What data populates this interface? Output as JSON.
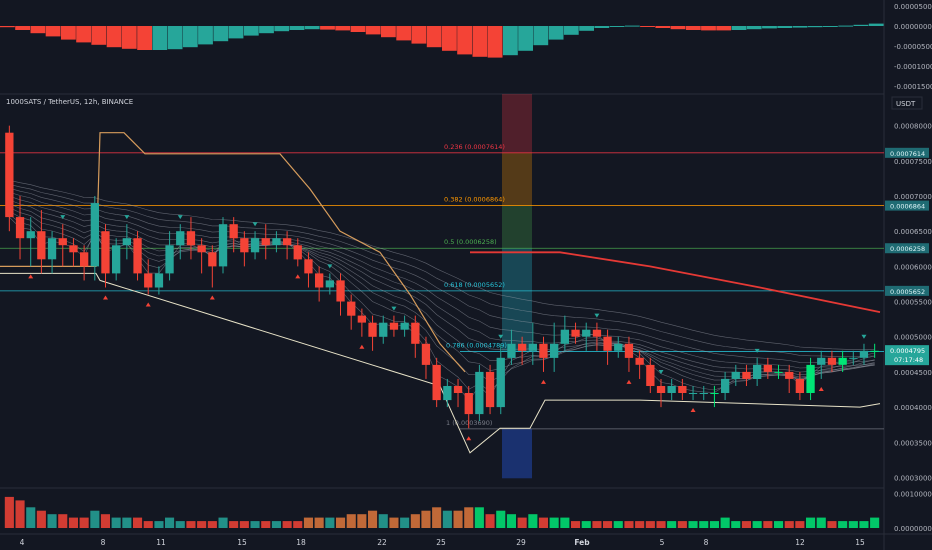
{
  "header": {
    "symbol_line": "1000SATS / TetherUS, 12h, BINANCE",
    "currency_label": "USDT"
  },
  "countdown": "07:17:48",
  "colors": {
    "background": "#131722",
    "bull": "#26a69a",
    "bear": "#f44336",
    "bright_green": "#00e676",
    "fib": "#26c6da",
    "red_line": "#e53935",
    "orange_line": "#d69c5c"
  },
  "chart_data": [
    {
      "type": "bar",
      "name": "oscillator",
      "yticks": [
        "0.0000500",
        "0.0000000",
        "-0.0000500",
        "-0.0001000",
        "-0.0001500"
      ],
      "ylim": [
        -0.00016,
        5e-05
      ],
      "values": [
        -3e-06,
        -1e-05,
        -1.8e-05,
        -2.6e-05,
        -3.4e-05,
        -4.1e-05,
        -4.7e-05,
        -5.3e-05,
        -5.7e-05,
        -6e-05,
        -6e-05,
        -5.8e-05,
        -5.3e-05,
        -4.6e-05,
        -3.8e-05,
        -3.1e-05,
        -2.4e-05,
        -1.8e-05,
        -1.3e-05,
        -1e-05,
        -8e-06,
        -9e-06,
        -1.1e-05,
        -1.5e-05,
        -2.1e-05,
        -2.8e-05,
        -3.6e-05,
        -4.4e-05,
        -5.3e-05,
        -6.2e-05,
        -7.1e-05,
        -7.7e-05,
        -7.9e-05,
        -7.3e-05,
        -6.2e-05,
        -4.8e-05,
        -3.4e-05,
        -2.2e-05,
        -1.2e-05,
        -5e-06,
        -1e-06,
        1e-06,
        -2e-06,
        -5e-06,
        -8e-06,
        -1e-05,
        -1.1e-05,
        -1.1e-05,
        -1e-05,
        -8e-06,
        -6e-06,
        -5e-06,
        -4e-06,
        -3e-06,
        -2e-06,
        1e-06,
        3e-06,
        6e-06
      ],
      "colors": [
        "r",
        "r",
        "r",
        "r",
        "r",
        "r",
        "r",
        "r",
        "r",
        "r",
        "g",
        "g",
        "g",
        "g",
        "g",
        "g",
        "g",
        "g",
        "g",
        "g",
        "g",
        "r",
        "r",
        "r",
        "r",
        "r",
        "r",
        "r",
        "r",
        "r",
        "r",
        "r",
        "r",
        "g",
        "g",
        "g",
        "g",
        "g",
        "g",
        "g",
        "g",
        "g",
        "r",
        "r",
        "r",
        "r",
        "r",
        "r",
        "g",
        "g",
        "g",
        "g",
        "g",
        "g",
        "g",
        "g",
        "g",
        "g"
      ]
    },
    {
      "type": "candlestick",
      "name": "price",
      "title": "1000SATS / TetherUS, 12h, BINANCE",
      "yticks": [
        "0.0008000",
        "0.0007500",
        "0.0007000",
        "0.0006500",
        "0.0006000",
        "0.0005500",
        "0.0005000",
        "0.0004500",
        "0.0004000",
        "0.0003500",
        "0.0003000"
      ],
      "ylim": [
        0.000285,
        0.000845
      ],
      "xticks": [
        "4",
        "8",
        "11",
        "15",
        "18",
        "22",
        "25",
        "29",
        "Feb",
        "5",
        "8",
        "12",
        "15"
      ],
      "candles": [
        [
          7.9,
          6.7,
          8.0,
          6.5
        ],
        [
          6.7,
          6.4,
          7.0,
          6.1
        ],
        [
          6.4,
          6.5,
          6.7,
          6.0
        ],
        [
          6.5,
          6.1,
          6.8,
          5.9
        ],
        [
          6.1,
          6.4,
          6.5,
          5.9
        ],
        [
          6.4,
          6.3,
          6.6,
          6.0
        ],
        [
          6.3,
          6.2,
          6.4,
          6.0
        ],
        [
          6.2,
          6.0,
          6.3,
          5.8
        ],
        [
          6.0,
          6.9,
          7.0,
          5.8
        ],
        [
          6.5,
          5.9,
          6.6,
          5.7
        ],
        [
          5.9,
          6.3,
          6.4,
          5.8
        ],
        [
          6.3,
          6.4,
          6.6,
          6.1
        ],
        [
          6.4,
          5.9,
          6.5,
          5.8
        ],
        [
          5.9,
          5.7,
          6.1,
          5.6
        ],
        [
          5.7,
          5.9,
          6.0,
          5.6
        ],
        [
          5.9,
          6.3,
          6.5,
          5.8
        ],
        [
          6.3,
          6.5,
          6.6,
          6.1
        ],
        [
          6.5,
          6.3,
          6.7,
          6.1
        ],
        [
          6.3,
          6.2,
          6.4,
          5.9
        ],
        [
          6.2,
          6.0,
          6.3,
          5.7
        ],
        [
          6.0,
          6.6,
          6.7,
          5.9
        ],
        [
          6.6,
          6.4,
          6.7,
          6.2
        ],
        [
          6.4,
          6.2,
          6.5,
          6.0
        ],
        [
          6.2,
          6.4,
          6.5,
          6.1
        ],
        [
          6.4,
          6.3,
          6.6,
          6.1
        ],
        [
          6.3,
          6.4,
          6.5,
          6.2
        ],
        [
          6.4,
          6.3,
          6.5,
          6.1
        ],
        [
          6.3,
          6.1,
          6.4,
          6.0
        ],
        [
          6.1,
          5.9,
          6.2,
          5.7
        ],
        [
          5.9,
          5.7,
          6.0,
          5.5
        ],
        [
          5.7,
          5.8,
          5.9,
          5.6
        ],
        [
          5.8,
          5.5,
          5.9,
          5.3
        ],
        [
          5.5,
          5.3,
          5.6,
          5.1
        ],
        [
          5.3,
          5.2,
          5.4,
          5.0
        ],
        [
          5.2,
          5.0,
          5.3,
          4.8
        ],
        [
          5.0,
          5.2,
          5.3,
          4.9
        ],
        [
          5.2,
          5.1,
          5.3,
          5.0
        ],
        [
          5.1,
          5.2,
          5.3,
          5.0
        ],
        [
          5.2,
          4.9,
          5.3,
          4.7
        ],
        [
          4.9,
          4.6,
          5.0,
          4.4
        ],
        [
          4.6,
          4.1,
          4.7,
          4.0
        ],
        [
          4.1,
          4.3,
          4.4,
          4.0
        ],
        [
          4.3,
          4.2,
          4.4,
          4.0
        ],
        [
          4.2,
          3.9,
          4.3,
          3.7
        ],
        [
          3.9,
          4.5,
          4.6,
          3.8
        ],
        [
          4.5,
          4.0,
          4.6,
          3.9
        ],
        [
          4.0,
          4.7,
          4.9,
          3.9
        ],
        [
          4.7,
          4.9,
          5.1,
          4.6
        ],
        [
          4.9,
          4.8,
          5.0,
          4.6
        ],
        [
          4.8,
          4.9,
          5.2,
          4.6
        ],
        [
          4.9,
          4.7,
          5.0,
          4.5
        ],
        [
          4.7,
          4.9,
          5.2,
          4.5
        ],
        [
          4.9,
          5.1,
          5.3,
          4.8
        ],
        [
          5.1,
          5.0,
          5.2,
          4.9
        ],
        [
          5.0,
          5.1,
          5.2,
          4.8
        ],
        [
          5.1,
          5.0,
          5.2,
          4.8
        ],
        [
          5.0,
          4.8,
          5.1,
          4.6
        ],
        [
          4.8,
          4.9,
          5.0,
          4.7
        ],
        [
          4.9,
          4.7,
          5.0,
          4.5
        ],
        [
          4.7,
          4.6,
          4.8,
          4.4
        ],
        [
          4.6,
          4.3,
          4.7,
          4.2
        ],
        [
          4.3,
          4.2,
          4.4,
          4.0
        ],
        [
          4.2,
          4.3,
          4.4,
          4.1
        ],
        [
          4.3,
          4.2,
          4.4,
          4.1
        ],
        [
          4.2,
          4.2,
          4.3,
          4.1
        ],
        [
          4.2,
          4.2,
          4.3,
          4.1
        ],
        [
          4.2,
          4.2,
          4.3,
          4.0
        ],
        [
          4.2,
          4.4,
          4.5,
          4.1
        ],
        [
          4.4,
          4.5,
          4.6,
          4.3
        ],
        [
          4.5,
          4.4,
          4.6,
          4.3
        ],
        [
          4.4,
          4.6,
          4.7,
          4.3
        ],
        [
          4.6,
          4.5,
          4.7,
          4.4
        ],
        [
          4.5,
          4.5,
          4.6,
          4.4
        ],
        [
          4.5,
          4.4,
          4.6,
          4.2
        ],
        [
          4.4,
          4.2,
          4.5,
          4.1
        ],
        [
          4.2,
          4.6,
          4.7,
          4.1
        ],
        [
          4.6,
          4.7,
          4.8,
          4.4
        ],
        [
          4.7,
          4.6,
          4.8,
          4.5
        ],
        [
          4.6,
          4.7,
          4.8,
          4.5
        ],
        [
          4.7,
          4.7,
          4.8,
          4.6
        ],
        [
          4.7,
          4.8,
          4.9,
          4.6
        ],
        [
          4.8,
          4.8,
          4.9,
          4.7
        ]
      ],
      "price_scale": 0.0001,
      "fib_levels": [
        {
          "label": "0.236 (0.0007614)",
          "value": 0.0007614,
          "axis_tag": "0.0007614",
          "color": "#f23645"
        },
        {
          "label": "0.382 (0.0006864)",
          "value": 0.0006864,
          "axis_tag": "0.0006864",
          "color": "#ff9800"
        },
        {
          "label": "0.5 (0.0006258)",
          "value": 0.0006258,
          "axis_tag": "0.0006258",
          "color": "#4caf50"
        },
        {
          "label": "0.618 (0.0005652)",
          "value": 0.0005652,
          "axis_tag": "0.0005652",
          "color": "#26c6da"
        },
        {
          "label": "0.786 (0.0004789)",
          "value": 0.0004789,
          "axis_tag": "",
          "color": "#26c6da"
        },
        {
          "label": "1 (0.0003690)",
          "value": 0.000369,
          "axis_tag": "",
          "color": "#787b86"
        }
      ],
      "last_price": "0.0004795"
    },
    {
      "type": "bar",
      "name": "volume",
      "yticks": [
        "0.0010000",
        "0.0000000"
      ],
      "ylim": [
        0,
        0.0011
      ],
      "values": [
        0.9,
        0.8,
        0.6,
        0.5,
        0.4,
        0.4,
        0.3,
        0.3,
        0.5,
        0.4,
        0.3,
        0.3,
        0.3,
        0.2,
        0.2,
        0.3,
        0.2,
        0.2,
        0.2,
        0.2,
        0.3,
        0.2,
        0.2,
        0.2,
        0.2,
        0.2,
        0.2,
        0.2,
        0.3,
        0.3,
        0.3,
        0.3,
        0.4,
        0.4,
        0.5,
        0.4,
        0.3,
        0.3,
        0.4,
        0.5,
        0.6,
        0.5,
        0.5,
        0.6,
        0.6,
        0.4,
        0.5,
        0.4,
        0.3,
        0.4,
        0.3,
        0.3,
        0.3,
        0.2,
        0.2,
        0.2,
        0.2,
        0.2,
        0.2,
        0.2,
        0.2,
        0.2,
        0.2,
        0.2,
        0.2,
        0.2,
        0.2,
        0.3,
        0.2,
        0.2,
        0.2,
        0.2,
        0.2,
        0.2,
        0.2,
        0.3,
        0.3,
        0.2,
        0.2,
        0.2,
        0.2,
        0.3
      ]
    }
  ]
}
